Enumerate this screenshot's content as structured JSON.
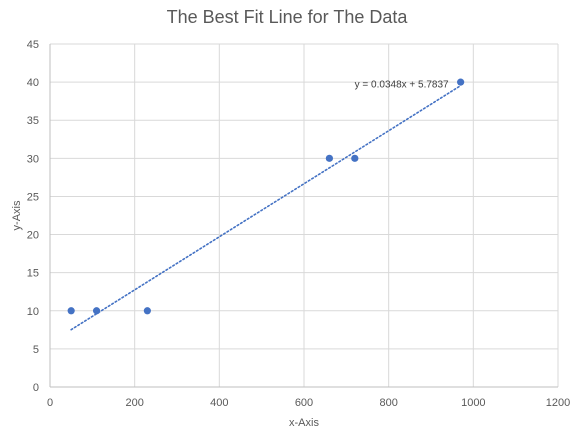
{
  "chart_data": {
    "type": "scatter",
    "title": "The Best Fit Line for The Data",
    "xlabel": "x-Axis",
    "ylabel": "y-Axis",
    "xlim": [
      0,
      1200
    ],
    "ylim": [
      0,
      45
    ],
    "x_ticks": [
      0,
      200,
      400,
      600,
      800,
      1000,
      1200
    ],
    "y_ticks": [
      0,
      5,
      10,
      15,
      20,
      25,
      30,
      35,
      40,
      45
    ],
    "grid": true,
    "legend": "none",
    "series": [
      {
        "points": [
          {
            "x": 50,
            "y": 10
          },
          {
            "x": 110,
            "y": 10
          },
          {
            "x": 230,
            "y": 10
          },
          {
            "x": 660,
            "y": 30
          },
          {
            "x": 720,
            "y": 30
          },
          {
            "x": 970,
            "y": 40
          }
        ],
        "color": "#4472C4"
      }
    ],
    "trendline": {
      "type": "linear",
      "slope": 0.0348,
      "intercept": 5.7837,
      "x_range": [
        50,
        970
      ],
      "style": "dotted",
      "color": "#4472C4",
      "equation_label": "y = 0.0348x + 5.7837"
    },
    "gridline_color": "#d9d9d9",
    "axis_color": "#bfbfbf",
    "text_color": "#595959"
  }
}
